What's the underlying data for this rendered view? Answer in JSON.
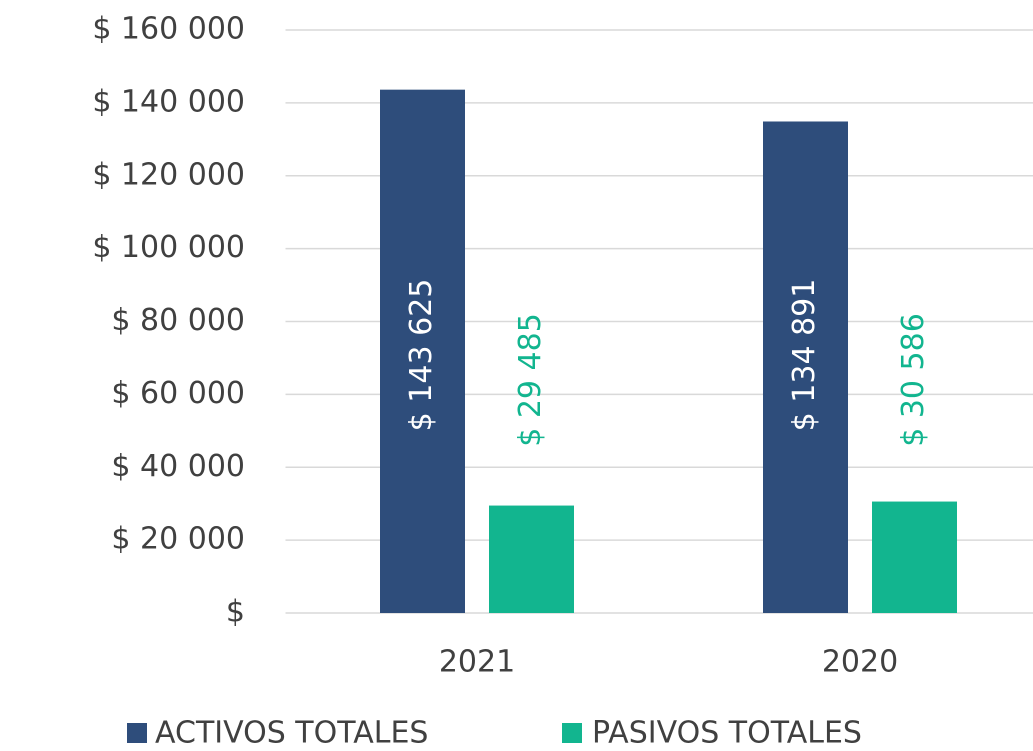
{
  "chart_data": {
    "type": "bar",
    "categories": [
      "2021",
      "2020"
    ],
    "series": [
      {
        "name": "ACTIVOS TOTALES",
        "color": "#2e4d7b",
        "label_color": "#ffffff",
        "values": [
          143625,
          134891
        ],
        "value_labels": [
          "$ 143 625",
          "$ 134 891"
        ]
      },
      {
        "name": "PASIVOS TOTALES",
        "color": "#12b58f",
        "label_color": "#12b58f",
        "values": [
          29485,
          30586
        ],
        "value_labels": [
          "$ 29 485",
          "$ 30 586"
        ]
      }
    ],
    "ylim": [
      0,
      160000
    ],
    "yticks": [
      {
        "value": 0,
        "label": "$"
      },
      {
        "value": 20000,
        "label": "$ 20 000"
      },
      {
        "value": 40000,
        "label": "$ 40 000"
      },
      {
        "value": 60000,
        "label": "$ 60 000"
      },
      {
        "value": 80000,
        "label": "$ 80 000"
      },
      {
        "value": 100000,
        "label": "$ 100 000"
      },
      {
        "value": 120000,
        "label": "$ 120 000"
      },
      {
        "value": 140000,
        "label": "$ 140 000"
      },
      {
        "value": 160000,
        "label": "$ 160 000"
      }
    ],
    "grid": true,
    "legend": "bottom"
  }
}
